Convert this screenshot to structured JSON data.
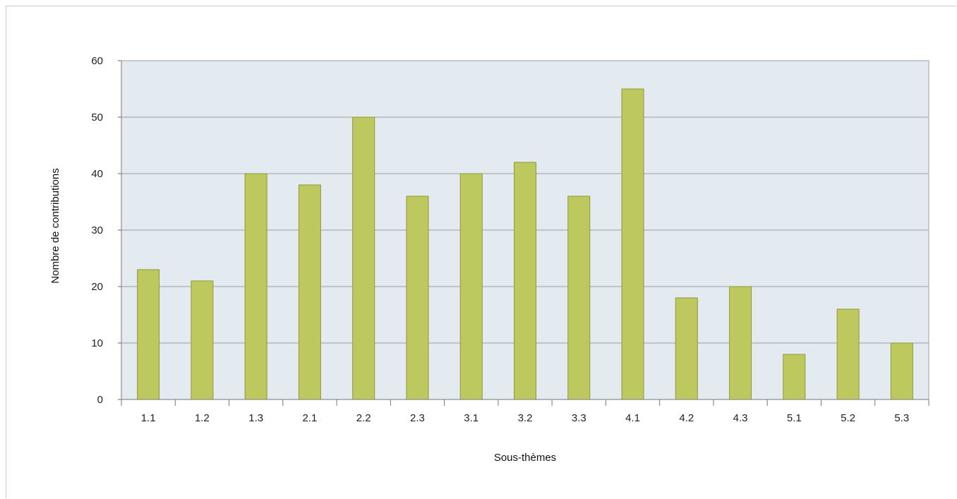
{
  "chart_data": {
    "type": "bar",
    "categories": [
      "1.1",
      "1.2",
      "1.3",
      "2.1",
      "2.2",
      "2.3",
      "3.1",
      "3.2",
      "3.3",
      "4.1",
      "4.2",
      "4.3",
      "5.1",
      "5.2",
      "5.3"
    ],
    "values": [
      23,
      21,
      40,
      38,
      50,
      36,
      40,
      42,
      36,
      55,
      18,
      20,
      8,
      16,
      10
    ],
    "xlabel": "Sous-thèmes",
    "ylabel": "Nombre de contributions",
    "ylim": [
      0,
      60
    ],
    "yticks": [
      0,
      10,
      20,
      30,
      40,
      50,
      60
    ],
    "grid": true,
    "colors": {
      "bar_fill": "#bdc85e",
      "bar_stroke": "#8f9a3a",
      "plot_background": "#e3ebf1",
      "gridline": "#9aa0a6"
    }
  }
}
